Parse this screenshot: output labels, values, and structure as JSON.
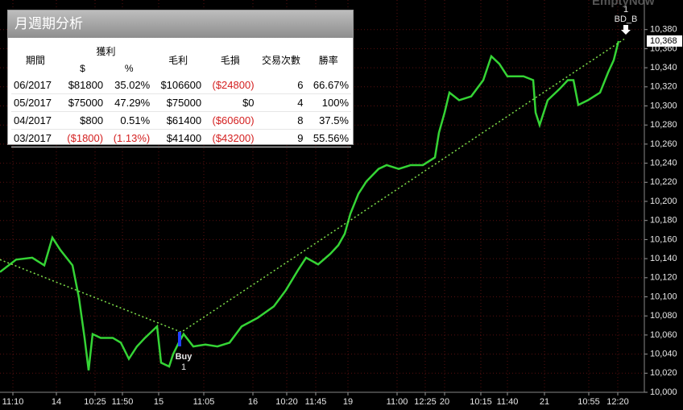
{
  "table": {
    "title": "月週期分析",
    "header": [
      "期間",
      "獲利",
      "毛利",
      "毛損",
      "交易次數",
      "勝率"
    ],
    "subheader": [
      "$",
      "%"
    ],
    "rows": [
      [
        "06/2017",
        "$81800",
        "35.02%",
        "$106600",
        "($24800)",
        "6",
        "66.67%"
      ],
      [
        "05/2017",
        "$75000",
        "47.29%",
        "$75000",
        "$0",
        "4",
        "100%"
      ],
      [
        "04/2017",
        "$800",
        "0.51%",
        "$61400",
        "($60600)",
        "8",
        "37.5%"
      ],
      [
        "03/2017",
        "($1800)",
        "(1.13%)",
        "$41400",
        "($43200)",
        "9",
        "55.56%"
      ]
    ]
  },
  "chart_data": {
    "type": "line",
    "xlim": [
      0,
      800
    ],
    "ylim": [
      10000,
      10400
    ],
    "xticks": [
      {
        "value": 16,
        "label": "11:10"
      },
      {
        "value": 70,
        "label": "14"
      },
      {
        "value": 118,
        "label": "10:25"
      },
      {
        "value": 152,
        "label": "11:50"
      },
      {
        "value": 197,
        "label": "15"
      },
      {
        "value": 253,
        "label": "11:05"
      },
      {
        "value": 314,
        "label": "16"
      },
      {
        "value": 356,
        "label": "10:20"
      },
      {
        "value": 392,
        "label": "11:45"
      },
      {
        "value": 432,
        "label": "19"
      },
      {
        "value": 493,
        "label": "11:00"
      },
      {
        "value": 528,
        "label": "12:25"
      },
      {
        "value": 552,
        "label": "20"
      },
      {
        "value": 597,
        "label": "10:15"
      },
      {
        "value": 630,
        "label": "11:40"
      },
      {
        "value": 676,
        "label": "21"
      },
      {
        "value": 731,
        "label": "10:55"
      },
      {
        "value": 767,
        "label": "12:20"
      }
    ],
    "yticks": [
      {
        "value": 10000,
        "label": "10,000"
      },
      {
        "value": 10020,
        "label": "10,020"
      },
      {
        "value": 10040,
        "label": "10,040"
      },
      {
        "value": 10060,
        "label": "10,060"
      },
      {
        "value": 10080,
        "label": "10,080"
      },
      {
        "value": 10100,
        "label": "10,100"
      },
      {
        "value": 10120,
        "label": "10,120"
      },
      {
        "value": 10140,
        "label": "10,140"
      },
      {
        "value": 10160,
        "label": "10,160"
      },
      {
        "value": 10180,
        "label": "10,180"
      },
      {
        "value": 10200,
        "label": "10,200"
      },
      {
        "value": 10220,
        "label": "10,220"
      },
      {
        "value": 10240,
        "label": "10,240"
      },
      {
        "value": 10260,
        "label": "10,260"
      },
      {
        "value": 10280,
        "label": "10,280"
      },
      {
        "value": 10300,
        "label": "10,300"
      },
      {
        "value": 10320,
        "label": "10,320"
      },
      {
        "value": 10340,
        "label": "10,340"
      },
      {
        "value": 10360,
        "label": "10,360"
      },
      {
        "value": 10380,
        "label": "10,380"
      }
    ],
    "grid": true,
    "series": [
      {
        "color": "#35d435",
        "x": [
          0,
          20,
          40,
          55,
          65,
          75,
          90,
          98,
          105,
          110,
          115,
          125,
          140,
          150,
          160,
          170,
          180,
          195,
          200,
          210,
          215,
          222,
          228,
          240,
          255,
          270,
          285,
          300,
          320,
          340,
          355,
          370,
          380,
          395,
          410,
          420,
          428,
          435,
          445,
          455,
          470,
          480,
          495,
          510,
          525,
          540,
          545,
          552,
          558,
          570,
          585,
          600,
          610,
          620,
          630,
          650,
          662,
          665,
          670,
          680,
          695,
          705,
          712,
          718,
          730,
          745,
          755,
          762,
          768
        ],
        "values": [
          10126,
          10139,
          10141,
          10133,
          10162,
          10149,
          10133,
          10099,
          10057,
          10023,
          10061,
          10057,
          10057,
          10052,
          10035,
          10048,
          10057,
          10069,
          10031,
          10027,
          10040,
          10052,
          10061,
          10048,
          10050,
          10048,
          10052,
          10069,
          10078,
          10090,
          10107,
          10128,
          10141,
          10134,
          10145,
          10154,
          10166,
          10187,
          10208,
          10221,
          10234,
          10238,
          10234,
          10238,
          10238,
          10246,
          10272,
          10293,
          10314,
          10306,
          10310,
          10327,
          10352,
          10344,
          10331,
          10331,
          10327,
          10293,
          10280,
          10306,
          10318,
          10327,
          10327,
          10301,
          10306,
          10314,
          10335,
          10348,
          10368
        ]
      },
      {
        "color": "#7ee04a",
        "x": [
          0,
          225,
          775
        ],
        "values": [
          10139,
          10063,
          10370
        ]
      }
    ],
    "annotations": {
      "buy_label": "Buy",
      "buy_count": "1",
      "exit_count": "1",
      "exit_label": "BD_B",
      "watermark": "EmptyNow",
      "last_price": {
        "value": 10368,
        "label": "10,368"
      }
    }
  }
}
